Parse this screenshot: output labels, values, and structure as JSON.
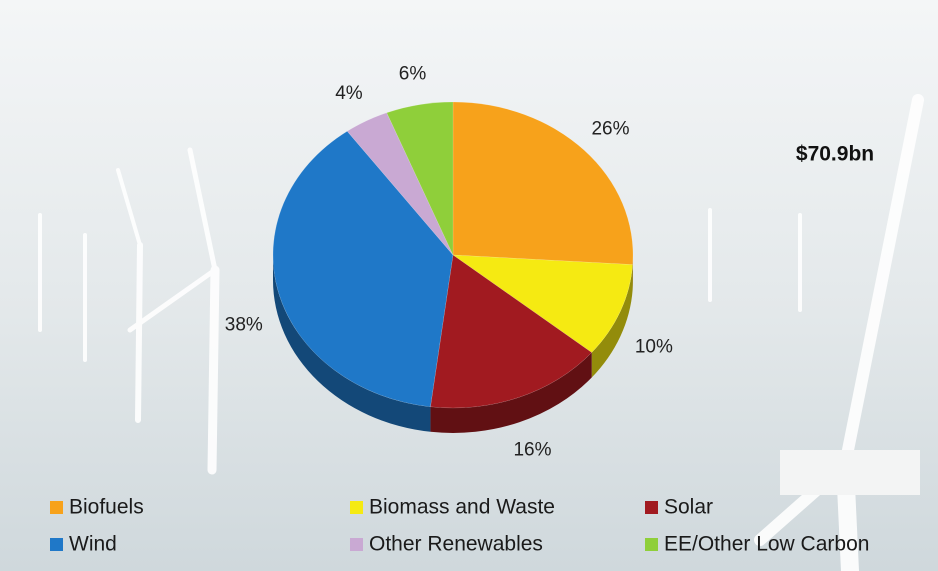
{
  "chart_data": {
    "type": "pie",
    "annotation": "$70.9bn",
    "categories": [
      "Biofuels",
      "Biomass and Waste",
      "Solar",
      "Wind",
      "Other Renewables",
      "EE/Other Low Carbon"
    ],
    "values": [
      26,
      10,
      16,
      38,
      4,
      6
    ],
    "value_labels": [
      "26%",
      "10%",
      "16%",
      "38%",
      "4%",
      "6%"
    ],
    "colors": [
      "#f7a21b",
      "#f5ea12",
      "#a11a20",
      "#1f78c8",
      "#c9a9d3",
      "#8fcf3a"
    ]
  }
}
